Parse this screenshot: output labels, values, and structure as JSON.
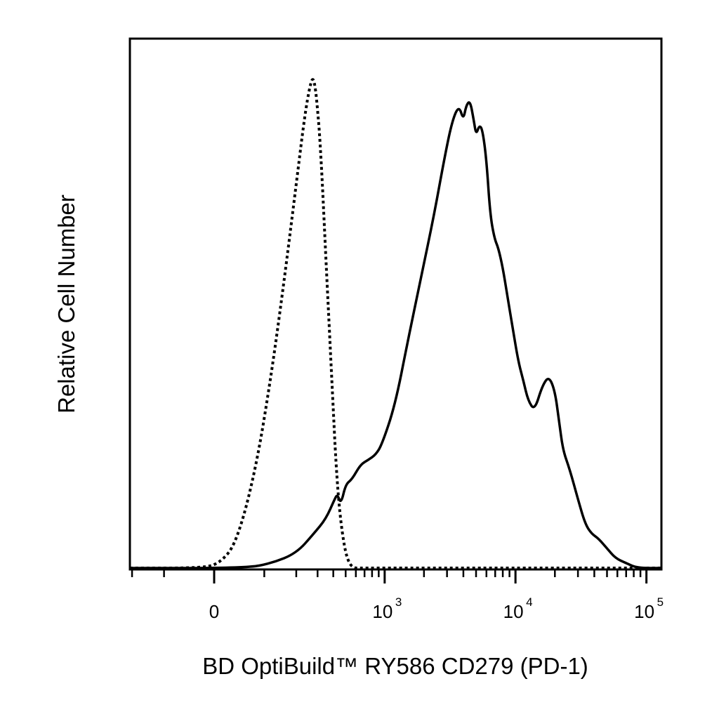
{
  "chart_data": {
    "type": "line",
    "xlabel": "BD OptiBuild™ RY586 CD279 (PD-1)",
    "ylabel": "Relative Cell Number",
    "x_scale": "biexponential",
    "xlim": [
      -400,
      150000
    ],
    "ylim": [
      0,
      100
    ],
    "grid": false,
    "legend": "none",
    "x_ticks": [
      {
        "value": 0,
        "base": "0",
        "exp": ""
      },
      {
        "value": 1000,
        "base": "10",
        "exp": "3"
      },
      {
        "value": 10000,
        "base": "10",
        "exp": "4"
      },
      {
        "value": 100000,
        "base": "10",
        "exp": "5"
      }
    ],
    "series": [
      {
        "style": "dotted",
        "color": "#000000",
        "x": [
          -400,
          -20,
          10,
          40,
          80,
          120,
          160,
          200,
          230,
          255,
          275,
          290,
          300,
          310,
          325,
          345,
          370,
          395,
          420,
          450,
          490,
          530,
          580,
          640,
          700,
          800,
          1000,
          1500,
          3000,
          10000,
          150000
        ],
        "y": [
          0,
          0,
          1,
          5,
          20,
          40,
          60,
          78,
          90,
          97,
          100,
          97,
          93,
          89,
          80,
          66,
          50,
          35,
          21,
          11,
          4,
          1,
          0,
          0,
          0,
          0,
          0,
          0,
          0,
          0,
          0
        ]
      },
      {
        "style": "solid",
        "color": "#000000",
        "x": [
          -400,
          60,
          120,
          200,
          280,
          350,
          410,
          430,
          460,
          500,
          560,
          650,
          750,
          850,
          950,
          1200,
          1500,
          1900,
          2400,
          2900,
          3300,
          3700,
          4000,
          4200,
          4500,
          4800,
          5000,
          5300,
          5600,
          6000,
          6400,
          6900,
          7400,
          8000,
          8700,
          9500,
          10500,
          11500,
          12500,
          14000,
          16000,
          18000,
          20000,
          21500,
          23000,
          26000,
          30000,
          34000,
          38000,
          43000,
          50000,
          58000,
          70000,
          85000,
          150000
        ],
        "y": [
          0,
          0,
          1,
          3,
          7,
          10,
          14,
          15,
          13,
          17,
          18,
          21,
          22,
          23,
          25,
          33,
          46,
          59,
          72,
          84,
          91,
          94,
          91,
          94,
          95,
          91,
          88,
          90,
          89,
          83,
          72,
          67,
          65,
          61,
          55,
          49,
          42,
          38,
          34,
          32,
          37,
          39,
          36,
          30,
          24,
          20,
          14,
          9,
          7,
          6,
          4,
          2,
          1,
          0,
          0
        ]
      }
    ]
  }
}
